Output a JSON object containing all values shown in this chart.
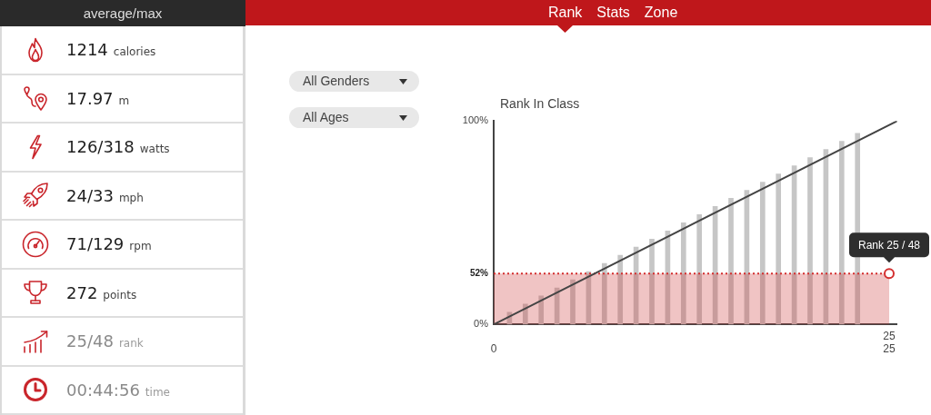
{
  "chart_data": [
    {
      "type": "other",
      "title": "average/max",
      "annotations": [
        "1214 calories",
        "17.97 m",
        "126/318 watts",
        "24/33 mph",
        "71/129 rpm",
        "272 points",
        "25/48 rank",
        "00:44:56 time"
      ]
    },
    {
      "type": "bar",
      "title": "Rank In Class",
      "x": [
        1,
        2,
        3,
        4,
        5,
        6,
        7,
        8,
        9,
        10,
        11,
        12,
        13,
        14,
        15,
        16,
        17,
        18,
        19,
        20,
        21,
        22,
        23
      ],
      "xlim": [
        0,
        25.5
      ],
      "xticks": [
        0,
        25
      ],
      "ylim": [
        0,
        100
      ],
      "yticks": [
        {
          "value": 0,
          "label": "0%"
        },
        {
          "value": 100,
          "label": "100%"
        }
      ],
      "series": [
        {
          "type": "bar",
          "color": "#c6c6c6",
          "values": [
            6,
            10,
            14,
            18,
            22,
            26,
            30,
            34,
            38,
            42,
            46,
            50,
            54,
            58,
            62,
            66,
            70,
            74,
            78,
            82,
            86,
            90,
            94
          ]
        },
        {
          "type": "line",
          "color": "#444444",
          "x": [
            0,
            25.5
          ],
          "values": [
            0,
            100
          ]
        },
        {
          "type": "scatter",
          "color": "#d32f2f",
          "x": [
            25
          ],
          "values": [
            25
          ],
          "marker": "circle"
        }
      ],
      "ref_lines": [
        {
          "axis": "y",
          "value": 25,
          "color": "#d32f2f",
          "line_style": "dotted"
        }
      ],
      "bands": [
        {
          "axis": "y",
          "from": 0,
          "to": 25,
          "color": "#f0c4c4"
        }
      ],
      "annotations": [
        "Rank",
        "Stats",
        "Zone",
        "All Genders",
        "All Ages",
        "52%",
        {
          "text": "Rank 25 / 48",
          "x": 25,
          "y": 25
        },
        {
          "text": "25",
          "x": 25,
          "y": 0
        }
      ]
    }
  ]
}
